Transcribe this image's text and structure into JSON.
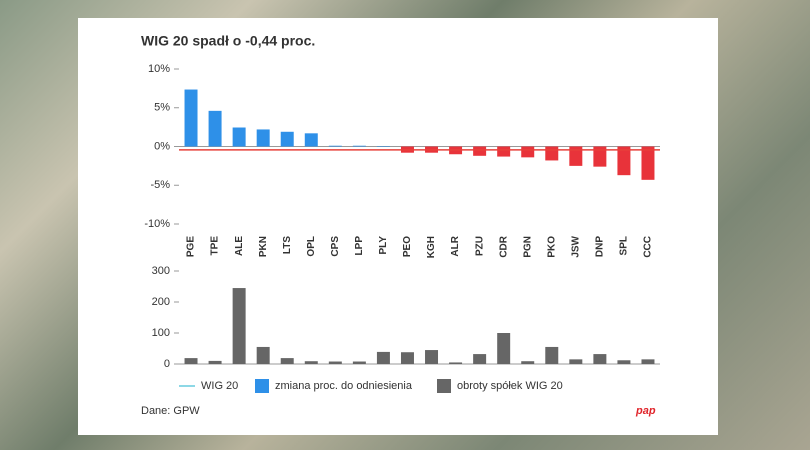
{
  "chart_data": [
    {
      "type": "bar",
      "title": "WIG 20 spadł o -0,44 proc.",
      "categories": [
        "PGE",
        "TPE",
        "ALE",
        "PKN",
        "LTS",
        "OPL",
        "CPS",
        "LPP",
        "PLY",
        "PEO",
        "KGH",
        "ALR",
        "PZU",
        "CDR",
        "PGN",
        "PKO",
        "JSW",
        "DNP",
        "SPL",
        "CCC"
      ],
      "series": [
        {
          "name": "zmiana proc. do odniesienia",
          "color": "#2e90e8",
          "color_negative": "#e8333a",
          "values": [
            7.35,
            4.6,
            2.45,
            2.2,
            1.9,
            1.7,
            0.1,
            0.1,
            0.05,
            -0.8,
            -0.8,
            -1.0,
            -1.2,
            -1.3,
            -1.4,
            -1.8,
            -2.5,
            -2.6,
            -3.7,
            -4.3
          ]
        }
      ],
      "reference_line": {
        "name": "WIG 20",
        "value": -0.44,
        "color": "#e8403a",
        "legend_color": "#8dd8e6"
      },
      "ylim": [
        -10,
        10
      ],
      "yticks": [
        {
          "value": 10,
          "label": "10%"
        },
        {
          "value": 5,
          "label": "5%"
        },
        {
          "value": 0,
          "label": "0%"
        },
        {
          "value": -5,
          "label": "-5%"
        },
        {
          "value": -10,
          "label": "-10%"
        }
      ]
    },
    {
      "type": "bar",
      "series": [
        {
          "name": "obroty spółek WIG 20",
          "color": "#666666",
          "values": [
            19,
            10,
            245,
            55,
            19,
            9,
            8,
            8,
            39,
            38,
            45,
            5,
            32,
            100,
            9,
            55,
            15,
            32,
            12,
            15
          ]
        }
      ],
      "ylim": [
        0,
        300
      ],
      "yticks": [
        0,
        100,
        200,
        300
      ]
    }
  ],
  "source": "Dane: GPW",
  "logo": "pap"
}
